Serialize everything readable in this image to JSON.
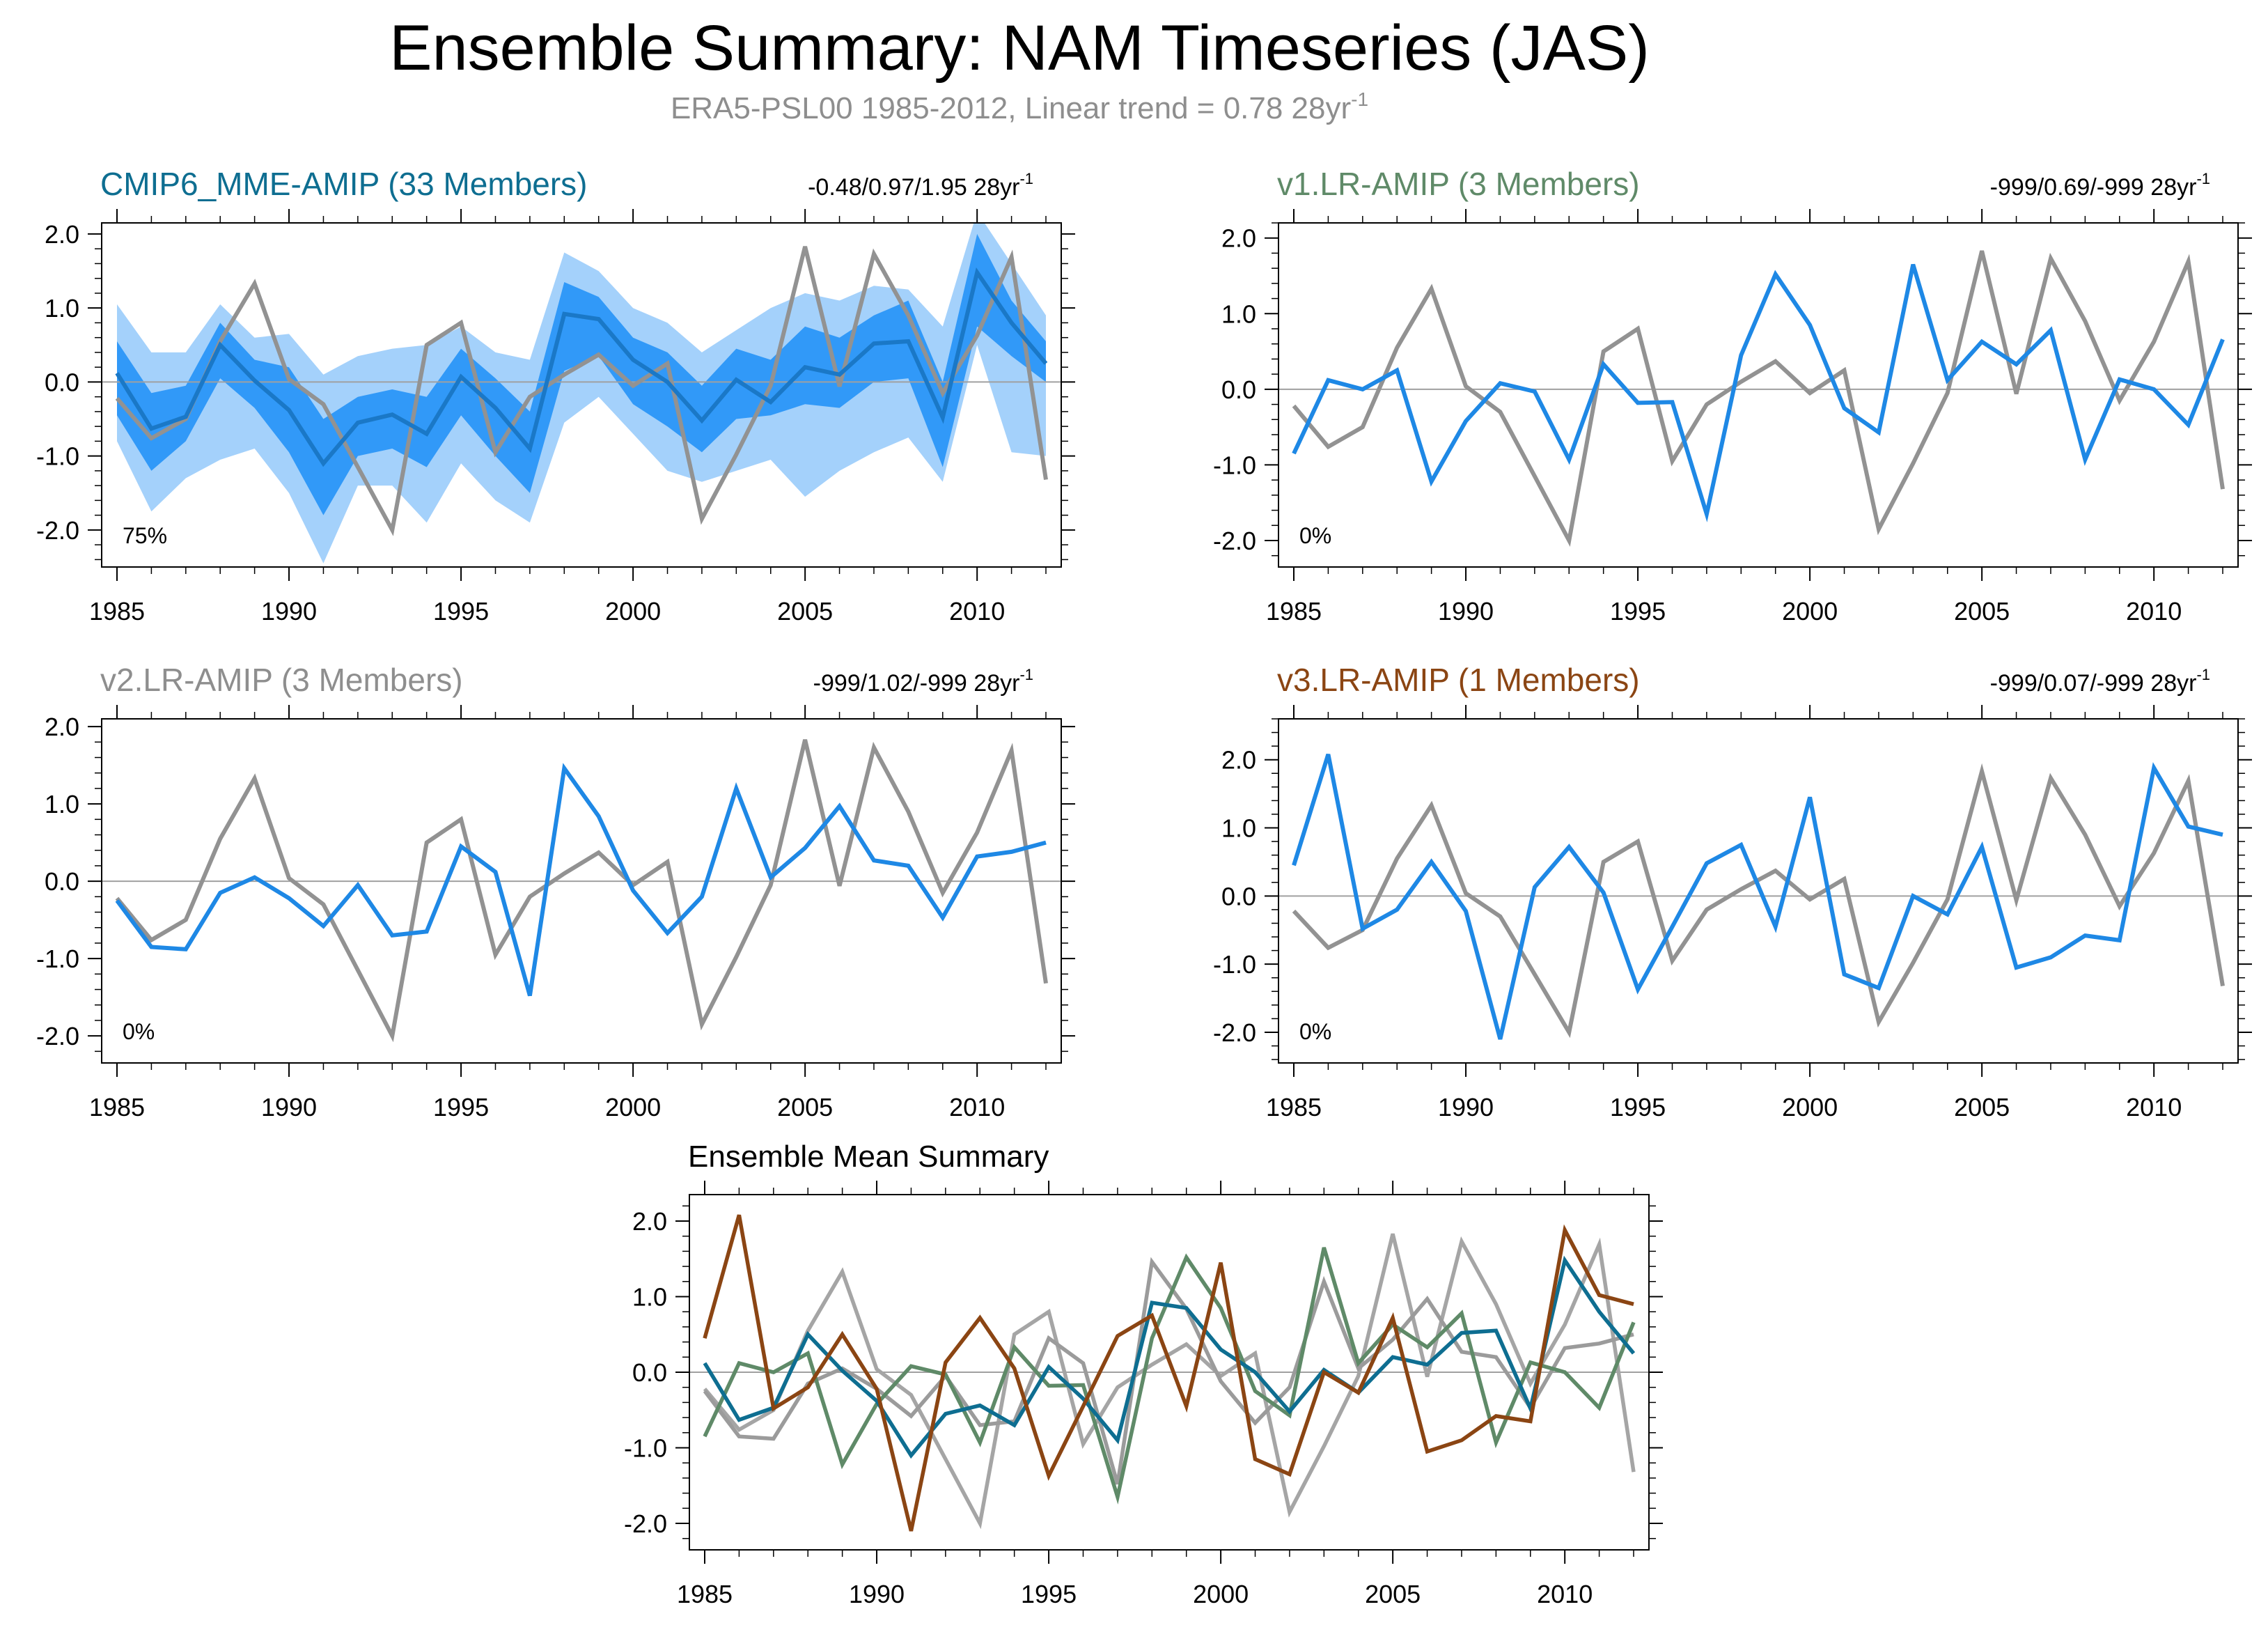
{
  "figure": {
    "title": "Ensemble Summary: NAM Timeseries (JAS)",
    "subtitle": "ERA5-PSL00 1985-2012, Linear trend = 0.78 28yr",
    "subtitle_exp": "-1"
  },
  "colors": {
    "obs": "#929292",
    "model": "#1e88e5",
    "band_outer": "#a4d1fb",
    "band_inner": "#3199f8",
    "mme_mean": "#1a78c7",
    "title_mme": "#0e6e91",
    "title_v1": "#5f8a68",
    "title_v2": "#8e8e8e",
    "title_v3": "#8b4513",
    "zero_line": "#a0a0a0"
  },
  "chart_data": [
    {
      "type": "line",
      "id": "mme",
      "title": "CMIP6_MME-AMIP (33 Members)",
      "trend_label": "-0.48/0.97/1.95 28yr",
      "trend_exp": "-1",
      "pct_label": "75%",
      "xlabel": "",
      "ylabel": "",
      "xlim": [
        1985,
        2012
      ],
      "ylim": [
        -2.5,
        2.15
      ],
      "xticks": [
        1985,
        1990,
        1995,
        2000,
        2005,
        2010
      ],
      "xtick_labels": [
        "1985",
        "1990",
        "1995",
        "2000",
        "2005",
        "2010"
      ],
      "yticks": [
        -2,
        -1,
        0,
        1,
        2
      ],
      "ytick_labels": [
        "-2.0",
        "-1.0",
        "0.0",
        "1.0",
        "2.0"
      ],
      "x": [
        1985,
        1986,
        1987,
        1988,
        1989,
        1990,
        1991,
        1992,
        1993,
        1994,
        1995,
        1996,
        1997,
        1998,
        1999,
        2000,
        2001,
        2002,
        2003,
        2004,
        2005,
        2006,
        2007,
        2008,
        2009,
        2010,
        2011,
        2012
      ],
      "band_outer_upper": [
        1.05,
        0.4,
        0.4,
        1.05,
        0.6,
        0.65,
        0.1,
        0.35,
        0.45,
        0.5,
        0.75,
        0.4,
        0.3,
        1.75,
        1.5,
        1.0,
        0.8,
        0.4,
        0.7,
        1.0,
        1.2,
        1.1,
        1.3,
        1.25,
        0.75,
        2.3,
        1.6,
        0.9
      ],
      "band_outer_lower": [
        -0.8,
        -1.75,
        -1.3,
        -1.05,
        -0.9,
        -1.5,
        -2.45,
        -1.4,
        -1.4,
        -1.9,
        -1.1,
        -1.6,
        -1.9,
        -0.55,
        -0.2,
        -0.7,
        -1.2,
        -1.35,
        -1.2,
        -1.05,
        -1.55,
        -1.2,
        -0.95,
        -0.75,
        -1.35,
        0.5,
        -0.95,
        -1.0
      ],
      "band_inner_upper": [
        0.55,
        -0.15,
        -0.05,
        0.8,
        0.3,
        0.2,
        -0.5,
        -0.2,
        -0.1,
        -0.2,
        0.45,
        0.05,
        -0.4,
        1.35,
        1.15,
        0.6,
        0.4,
        -0.05,
        0.45,
        0.3,
        0.75,
        0.6,
        0.9,
        1.1,
        0.0,
        2.0,
        1.1,
        0.55
      ],
      "band_inner_lower": [
        -0.45,
        -1.2,
        -0.8,
        0.05,
        -0.35,
        -0.95,
        -1.8,
        -1.0,
        -0.9,
        -1.15,
        -0.45,
        -1.0,
        -1.5,
        0.15,
        0.35,
        -0.3,
        -0.6,
        -0.95,
        -0.5,
        -0.45,
        -0.3,
        -0.35,
        0.0,
        0.05,
        -1.15,
        0.75,
        0.35,
        0.0
      ],
      "series": [
        {
          "name": "ERA5-PSL00",
          "role": "obs",
          "values": [
            -0.22,
            -0.76,
            -0.5,
            0.55,
            1.33,
            0.04,
            -0.3,
            -1.15,
            -2.0,
            0.5,
            0.8,
            -0.95,
            -0.2,
            0.1,
            0.37,
            -0.05,
            0.25,
            -1.85,
            -0.98,
            -0.05,
            1.83,
            -0.06,
            1.73,
            0.9,
            -0.15,
            0.63,
            1.69,
            -1.32
          ]
        },
        {
          "name": "CMIP6_MME-AMIP mean",
          "role": "mme_mean",
          "values": [
            0.12,
            -0.63,
            -0.47,
            0.5,
            0.02,
            -0.38,
            -1.1,
            -0.55,
            -0.44,
            -0.7,
            0.07,
            -0.35,
            -0.9,
            0.92,
            0.85,
            0.3,
            0.0,
            -0.52,
            0.03,
            -0.27,
            0.2,
            0.1,
            0.52,
            0.55,
            -0.48,
            1.48,
            0.8,
            0.25
          ]
        }
      ]
    },
    {
      "type": "line",
      "id": "v1",
      "title": "v1.LR-AMIP (3 Members)",
      "trend_label": "-999/0.69/-999 28yr",
      "trend_exp": "-1",
      "pct_label": "0%",
      "xlabel": "",
      "ylabel": "",
      "xlim": [
        1985,
        2012
      ],
      "ylim": [
        -2.35,
        2.2
      ],
      "xticks": [
        1985,
        1990,
        1995,
        2000,
        2005,
        2010
      ],
      "xtick_labels": [
        "1985",
        "1990",
        "1995",
        "2000",
        "2005",
        "2010"
      ],
      "yticks": [
        -2,
        -1,
        0,
        1,
        2
      ],
      "ytick_labels": [
        "-2.0",
        "-1.0",
        "0.0",
        "1.0",
        "2.0"
      ],
      "x": [
        1985,
        1986,
        1987,
        1988,
        1989,
        1990,
        1991,
        1992,
        1993,
        1994,
        1995,
        1996,
        1997,
        1998,
        1999,
        2000,
        2001,
        2002,
        2003,
        2004,
        2005,
        2006,
        2007,
        2008,
        2009,
        2010,
        2011,
        2012
      ],
      "series": [
        {
          "name": "ERA5-PSL00",
          "role": "obs",
          "values": [
            -0.22,
            -0.76,
            -0.5,
            0.55,
            1.33,
            0.04,
            -0.3,
            -1.15,
            -2.0,
            0.5,
            0.8,
            -0.95,
            -0.2,
            0.1,
            0.37,
            -0.05,
            0.25,
            -1.85,
            -0.98,
            -0.05,
            1.83,
            -0.06,
            1.73,
            0.9,
            -0.15,
            0.63,
            1.69,
            -1.32
          ]
        },
        {
          "name": "v1.LR-AMIP",
          "role": "model",
          "values": [
            -0.85,
            0.12,
            0.0,
            0.25,
            -1.22,
            -0.42,
            0.08,
            -0.03,
            -0.93,
            0.33,
            -0.18,
            -0.17,
            -1.65,
            0.45,
            1.52,
            0.85,
            -0.25,
            -0.57,
            1.65,
            0.12,
            0.63,
            0.33,
            0.78,
            -0.93,
            0.13,
            0.0,
            -0.47,
            0.66
          ]
        }
      ]
    },
    {
      "type": "line",
      "id": "v2",
      "title": "v2.LR-AMIP (3 Members)",
      "trend_label": "-999/1.02/-999 28yr",
      "trend_exp": "-1",
      "pct_label": "0%",
      "xlabel": "",
      "ylabel": "",
      "xlim": [
        1985,
        2012
      ],
      "ylim": [
        -2.35,
        2.1
      ],
      "xticks": [
        1985,
        1990,
        1995,
        2000,
        2005,
        2010
      ],
      "xtick_labels": [
        "1985",
        "1990",
        "1995",
        "2000",
        "2005",
        "2010"
      ],
      "yticks": [
        -2,
        -1,
        0,
        1,
        2
      ],
      "ytick_labels": [
        "-2.0",
        "-1.0",
        "0.0",
        "1.0",
        "2.0"
      ],
      "x": [
        1985,
        1986,
        1987,
        1988,
        1989,
        1990,
        1991,
        1992,
        1993,
        1994,
        1995,
        1996,
        1997,
        1998,
        1999,
        2000,
        2001,
        2002,
        2003,
        2004,
        2005,
        2006,
        2007,
        2008,
        2009,
        2010,
        2011,
        2012
      ],
      "series": [
        {
          "name": "ERA5-PSL00",
          "role": "obs",
          "values": [
            -0.22,
            -0.76,
            -0.5,
            0.55,
            1.33,
            0.04,
            -0.3,
            -1.15,
            -2.0,
            0.5,
            0.8,
            -0.95,
            -0.2,
            0.1,
            0.37,
            -0.05,
            0.25,
            -1.85,
            -0.98,
            -0.05,
            1.83,
            -0.06,
            1.73,
            0.9,
            -0.15,
            0.63,
            1.69,
            -1.32
          ]
        },
        {
          "name": "v2.LR-AMIP",
          "role": "model",
          "values": [
            -0.25,
            -0.85,
            -0.88,
            -0.15,
            0.05,
            -0.22,
            -0.58,
            -0.05,
            -0.7,
            -0.65,
            0.45,
            0.12,
            -1.48,
            1.46,
            0.84,
            -0.12,
            -0.67,
            -0.2,
            1.2,
            0.05,
            0.43,
            0.97,
            0.27,
            0.2,
            -0.47,
            0.32,
            0.38,
            0.5
          ]
        }
      ]
    },
    {
      "type": "line",
      "id": "v3",
      "title": "v3.LR-AMIP (1 Members)",
      "trend_label": "-999/0.07/-999 28yr",
      "trend_exp": "-1",
      "pct_label": "0%",
      "xlabel": "",
      "ylabel": "",
      "xlim": [
        1985,
        2012
      ],
      "ylim": [
        -2.45,
        2.6
      ],
      "xticks": [
        1985,
        1990,
        1995,
        2000,
        2005,
        2010
      ],
      "xtick_labels": [
        "1985",
        "1990",
        "1995",
        "2000",
        "2005",
        "2010"
      ],
      "yticks": [
        -2,
        -1,
        0,
        1,
        2
      ],
      "ytick_labels": [
        "-2.0",
        "-1.0",
        "0.0",
        "1.0",
        "2.0"
      ],
      "x": [
        1985,
        1986,
        1987,
        1988,
        1989,
        1990,
        1991,
        1992,
        1993,
        1994,
        1995,
        1996,
        1997,
        1998,
        1999,
        2000,
        2001,
        2002,
        2003,
        2004,
        2005,
        2006,
        2007,
        2008,
        2009,
        2010,
        2011,
        2012
      ],
      "series": [
        {
          "name": "ERA5-PSL00",
          "role": "obs",
          "values": [
            -0.22,
            -0.76,
            -0.5,
            0.55,
            1.33,
            0.04,
            -0.3,
            -1.15,
            -2.0,
            0.5,
            0.8,
            -0.95,
            -0.2,
            0.1,
            0.37,
            -0.05,
            0.25,
            -1.85,
            -0.98,
            -0.05,
            1.83,
            -0.06,
            1.73,
            0.9,
            -0.15,
            0.63,
            1.69,
            -1.32
          ]
        },
        {
          "name": "v3.LR-AMIP",
          "role": "model",
          "values": [
            0.45,
            2.08,
            -0.48,
            -0.2,
            0.5,
            -0.22,
            -2.1,
            0.13,
            0.72,
            0.05,
            -1.37,
            -0.45,
            0.48,
            0.75,
            -0.45,
            1.45,
            -1.15,
            -1.35,
            0.0,
            -0.27,
            0.72,
            -1.05,
            -0.9,
            -0.58,
            -0.65,
            1.88,
            1.02,
            0.9
          ]
        }
      ]
    },
    {
      "type": "line",
      "id": "summary",
      "title": "Ensemble Mean Summary",
      "xlabel": "",
      "ylabel": "",
      "xlim": [
        1985,
        2012
      ],
      "ylim": [
        -2.35,
        2.35
      ],
      "xticks": [
        1985,
        1990,
        1995,
        2000,
        2005,
        2010
      ],
      "xtick_labels": [
        "1985",
        "1990",
        "1995",
        "2000",
        "2005",
        "2010"
      ],
      "yticks": [
        -2,
        -1,
        0,
        1,
        2
      ],
      "ytick_labels": [
        "-2.0",
        "-1.0",
        "0.0",
        "1.0",
        "2.0"
      ],
      "x": [
        1985,
        1986,
        1987,
        1988,
        1989,
        1990,
        1991,
        1992,
        1993,
        1994,
        1995,
        1996,
        1997,
        1998,
        1999,
        2000,
        2001,
        2002,
        2003,
        2004,
        2005,
        2006,
        2007,
        2008,
        2009,
        2010,
        2011,
        2012
      ],
      "series": [
        {
          "name": "ERA5-PSL00",
          "color": "#a5a5a5",
          "values": [
            -0.22,
            -0.76,
            -0.5,
            0.55,
            1.33,
            0.04,
            -0.3,
            -1.15,
            -2.0,
            0.5,
            0.8,
            -0.95,
            -0.2,
            0.1,
            0.37,
            -0.05,
            0.25,
            -1.85,
            -0.98,
            -0.05,
            1.83,
            -0.06,
            1.73,
            0.9,
            -0.15,
            0.63,
            1.69,
            -1.32
          ]
        },
        {
          "name": "v2.LR-AMIP",
          "color": "#9b9b9b",
          "values": [
            -0.25,
            -0.85,
            -0.88,
            -0.15,
            0.05,
            -0.22,
            -0.58,
            -0.05,
            -0.7,
            -0.65,
            0.45,
            0.12,
            -1.48,
            1.46,
            0.84,
            -0.12,
            -0.67,
            -0.2,
            1.2,
            0.05,
            0.43,
            0.97,
            0.27,
            0.2,
            -0.47,
            0.32,
            0.38,
            0.5
          ]
        },
        {
          "name": "v1.LR-AMIP",
          "color": "#5f8a68",
          "values": [
            -0.85,
            0.12,
            0.0,
            0.25,
            -1.22,
            -0.42,
            0.08,
            -0.03,
            -0.93,
            0.33,
            -0.18,
            -0.17,
            -1.65,
            0.45,
            1.52,
            0.85,
            -0.25,
            -0.57,
            1.65,
            0.12,
            0.63,
            0.33,
            0.78,
            -0.93,
            0.13,
            0.0,
            -0.47,
            0.66
          ]
        },
        {
          "name": "CMIP6_MME-AMIP",
          "color": "#0e6e91",
          "values": [
            0.12,
            -0.63,
            -0.47,
            0.5,
            0.02,
            -0.38,
            -1.1,
            -0.55,
            -0.44,
            -0.7,
            0.07,
            -0.35,
            -0.9,
            0.92,
            0.85,
            0.3,
            0.0,
            -0.52,
            0.03,
            -0.27,
            0.2,
            0.1,
            0.52,
            0.55,
            -0.48,
            1.48,
            0.8,
            0.25
          ]
        },
        {
          "name": "v3.LR-AMIP",
          "color": "#8b4513",
          "values": [
            0.45,
            2.08,
            -0.48,
            -0.2,
            0.5,
            -0.22,
            -2.1,
            0.13,
            0.72,
            0.05,
            -1.37,
            -0.45,
            0.48,
            0.75,
            -0.45,
            1.45,
            -1.15,
            -1.35,
            0.0,
            -0.27,
            0.72,
            -1.05,
            -0.9,
            -0.58,
            -0.65,
            1.88,
            1.02,
            0.9
          ]
        }
      ]
    }
  ]
}
